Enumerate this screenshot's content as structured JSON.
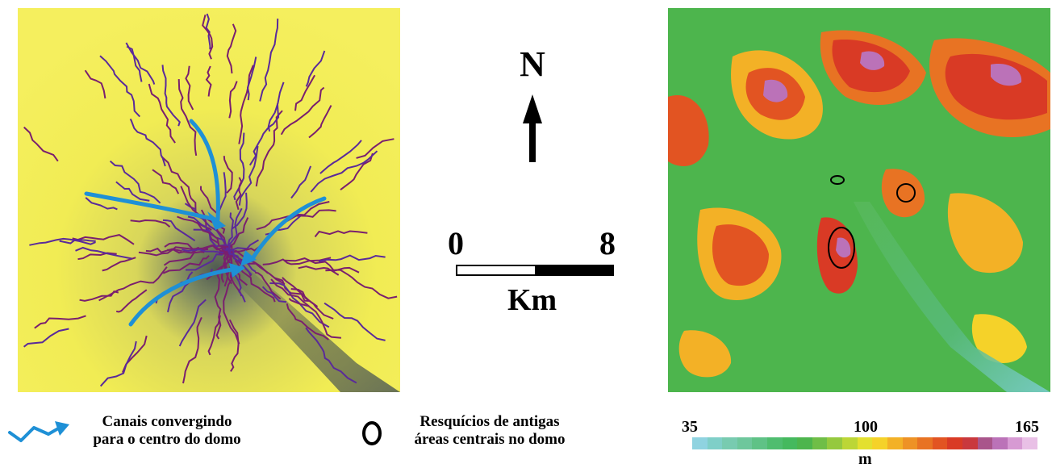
{
  "north": {
    "letter": "N"
  },
  "scale": {
    "min_label": "0",
    "max_label": "8",
    "unit": "Km"
  },
  "legend": {
    "channels_line1": "Canais convergindo",
    "channels_line2": "para o centro do domo",
    "remnants_line1": "Resquícios de antigas",
    "remnants_line2": "áreas centrais no domo"
  },
  "colorbar": {
    "min": "35",
    "mid": "100",
    "max": "165",
    "unit": "m",
    "colors": [
      "#8fd3e0",
      "#7fcfc8",
      "#78cbb0",
      "#6ec79c",
      "#5fc286",
      "#4fbd6f",
      "#45b95e",
      "#4db54d",
      "#6fbe47",
      "#95c93e",
      "#bcd636",
      "#e3e02f",
      "#f5d229",
      "#f3b126",
      "#ee9225",
      "#e87323",
      "#e25422",
      "#d93a25",
      "#c9383d",
      "#a9558b",
      "#bb72b8",
      "#d79ad3",
      "#e9c0e6"
    ]
  },
  "colors": {
    "channel_arrow": "#1e90d6",
    "drainage_network": "#7a1f6e",
    "terrain_yellow": "#f1ec54",
    "elevation_low": "#4db54d",
    "elevation_high": "#e0382a"
  },
  "icons": [
    "blue-arrow-icon",
    "ellipse-outline-icon",
    "north-arrow-icon"
  ]
}
